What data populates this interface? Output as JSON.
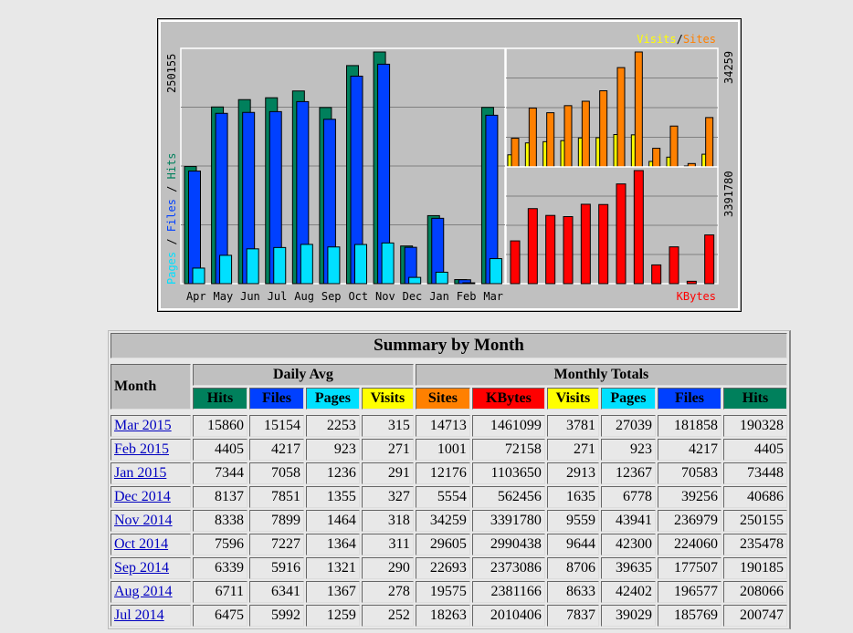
{
  "chart_data": {
    "type": "bar",
    "categories": [
      "Apr",
      "May",
      "Jun",
      "Jul",
      "Aug",
      "Sep",
      "Oct",
      "Nov",
      "Dec",
      "Jan",
      "Feb",
      "Mar"
    ],
    "panels": [
      {
        "name": "hits-files-pages",
        "legend": [
          "Pages",
          "Files",
          "Hits"
        ],
        "max_label": "250155",
        "ymax": 250155,
        "series": [
          {
            "name": "Hits",
            "color": "#00805c",
            "values": [
              126500,
              190800,
              198700,
              200747,
              208066,
              190185,
              235478,
              250155,
              40686,
              73448,
              4405,
              190328
            ]
          },
          {
            "name": "Files",
            "color": "#0040ff",
            "values": [
              121600,
              183900,
              184900,
              185769,
              196577,
              177507,
              224060,
              236979,
              39256,
              70583,
              4217,
              181858
            ]
          },
          {
            "name": "Pages",
            "color": "#00e0ff",
            "values": [
              16800,
              30600,
              37600,
              39029,
              42402,
              39635,
              42300,
              43941,
              6778,
              12367,
              923,
              27039
            ]
          }
        ]
      },
      {
        "name": "visits-sites",
        "legend": [
          "Visits",
          "Sites"
        ],
        "max_label": "34259",
        "ymax": 34259,
        "series": [
          {
            "name": "Visits",
            "color": "#ffff00",
            "values": [
              3600,
              7150,
              7520,
              7837,
              8633,
              8706,
              9644,
              9559,
              1635,
              2913,
              271,
              3781
            ]
          },
          {
            "name": "Sites",
            "color": "#ff8000",
            "values": [
              8550,
              17550,
              16150,
              18263,
              19575,
              22693,
              29605,
              34259,
              5554,
              12176,
              1001,
              14713
            ]
          }
        ]
      },
      {
        "name": "kbytes",
        "legend": [
          "KBytes"
        ],
        "max_label": "3391780",
        "ymax": 3391780,
        "series": [
          {
            "name": "KBytes",
            "color": "#ff0000",
            "values": [
              1283000,
              2250000,
              2046000,
              2010406,
              2381166,
              2373086,
              2990438,
              3391780,
              562456,
              1103650,
              72158,
              1461099
            ]
          }
        ]
      }
    ]
  },
  "table": {
    "title": "Summary by Month",
    "month_header": "Month",
    "daily_avg_header": "Daily Avg",
    "monthly_totals_header": "Monthly Totals",
    "columns": [
      {
        "label": "Hits",
        "color": "#00805c"
      },
      {
        "label": "Files",
        "color": "#0040ff"
      },
      {
        "label": "Pages",
        "color": "#00e0ff"
      },
      {
        "label": "Visits",
        "color": "#ffff00"
      },
      {
        "label": "Sites",
        "color": "#ff8000"
      },
      {
        "label": "KBytes",
        "color": "#ff0000"
      },
      {
        "label": "Visits",
        "color": "#ffff00"
      },
      {
        "label": "Pages",
        "color": "#00e0ff"
      },
      {
        "label": "Files",
        "color": "#0040ff"
      },
      {
        "label": "Hits",
        "color": "#00805c"
      }
    ],
    "rows": [
      [
        "Mar 2015",
        "15860",
        "15154",
        "2253",
        "315",
        "14713",
        "1461099",
        "3781",
        "27039",
        "181858",
        "190328"
      ],
      [
        "Feb 2015",
        "4405",
        "4217",
        "923",
        "271",
        "1001",
        "72158",
        "271",
        "923",
        "4217",
        "4405"
      ],
      [
        "Jan 2015",
        "7344",
        "7058",
        "1236",
        "291",
        "12176",
        "1103650",
        "2913",
        "12367",
        "70583",
        "73448"
      ],
      [
        "Dec 2014",
        "8137",
        "7851",
        "1355",
        "327",
        "5554",
        "562456",
        "1635",
        "6778",
        "39256",
        "40686"
      ],
      [
        "Nov 2014",
        "8338",
        "7899",
        "1464",
        "318",
        "34259",
        "3391780",
        "9559",
        "43941",
        "236979",
        "250155"
      ],
      [
        "Oct 2014",
        "7596",
        "7227",
        "1364",
        "311",
        "29605",
        "2990438",
        "9644",
        "42300",
        "224060",
        "235478"
      ],
      [
        "Sep 2014",
        "6339",
        "5916",
        "1321",
        "290",
        "22693",
        "2373086",
        "8706",
        "39635",
        "177507",
        "190185"
      ],
      [
        "Aug 2014",
        "6711",
        "6341",
        "1367",
        "278",
        "19575",
        "2381166",
        "8633",
        "42402",
        "196577",
        "208066"
      ],
      [
        "Jul 2014",
        "6475",
        "5992",
        "1259",
        "252",
        "18263",
        "2010406",
        "7837",
        "39029",
        "185769",
        "200747"
      ]
    ]
  }
}
